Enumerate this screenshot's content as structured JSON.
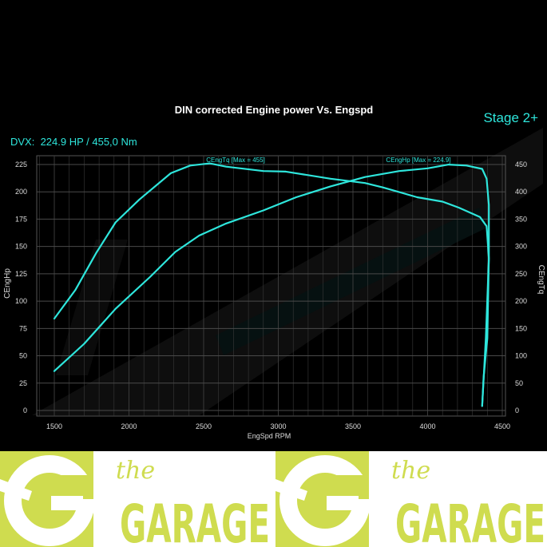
{
  "chart_data": {
    "type": "line",
    "title": "DIN corrected Engine power Vs. Engspd",
    "stage_label": "Stage 2+",
    "summary": "DVX:  224.9 HP / 455,0 Nm",
    "xlabel": "EngSpd RPM",
    "ylabel_left": "CEngHp",
    "ylabel_right": "CEngTq",
    "xlim": [
      1380,
      4520
    ],
    "ylim_left": [
      0,
      235
    ],
    "ylim_right": [
      0,
      470
    ],
    "xticks": [
      1500,
      2000,
      2500,
      3000,
      3500,
      4000,
      4500
    ],
    "yticks_left": [
      0,
      25,
      50,
      75,
      100,
      125,
      150,
      175,
      200,
      225
    ],
    "yticks_right": [
      0,
      50,
      100,
      150,
      200,
      250,
      300,
      350,
      400,
      450
    ],
    "grid": true,
    "line_color": "#2ee6dc",
    "series": [
      {
        "name": "CEngTq [Max = 455]",
        "axis": "right",
        "x": [
          1500,
          1640,
          1780,
          1910,
          2070,
          2280,
          2410,
          2540,
          2650,
          2900,
          3050,
          3350,
          3580,
          3700,
          3930,
          4100,
          4210,
          4350,
          4395,
          4410,
          4400,
          4375,
          4365
        ],
        "y": [
          168,
          220,
          288,
          344,
          386,
          434,
          448,
          452,
          446,
          438,
          437,
          424,
          416,
          408,
          390,
          382,
          371,
          354,
          337,
          278,
          132,
          60,
          8
        ]
      },
      {
        "name": "CEngHp [Max = 224.9]",
        "axis": "left",
        "x": [
          1500,
          1700,
          1910,
          2140,
          2310,
          2470,
          2650,
          2900,
          3120,
          3350,
          3580,
          3810,
          4000,
          4140,
          4260,
          4365,
          4395,
          4410,
          4410,
          4390,
          4365
        ],
        "y": [
          36,
          61,
          93,
          122,
          145,
          160,
          171,
          183,
          195,
          205,
          213.5,
          219,
          221.5,
          224.9,
          224,
          221,
          212,
          188,
          139,
          66,
          4
        ]
      }
    ]
  },
  "banner": {
    "colors": {
      "brand": "#cfdc4f",
      "background": "#ffffff"
    },
    "logos": [
      {
        "small": "the",
        "big": "GARAGE"
      },
      {
        "small": "the",
        "big": "GARAGE"
      }
    ]
  }
}
